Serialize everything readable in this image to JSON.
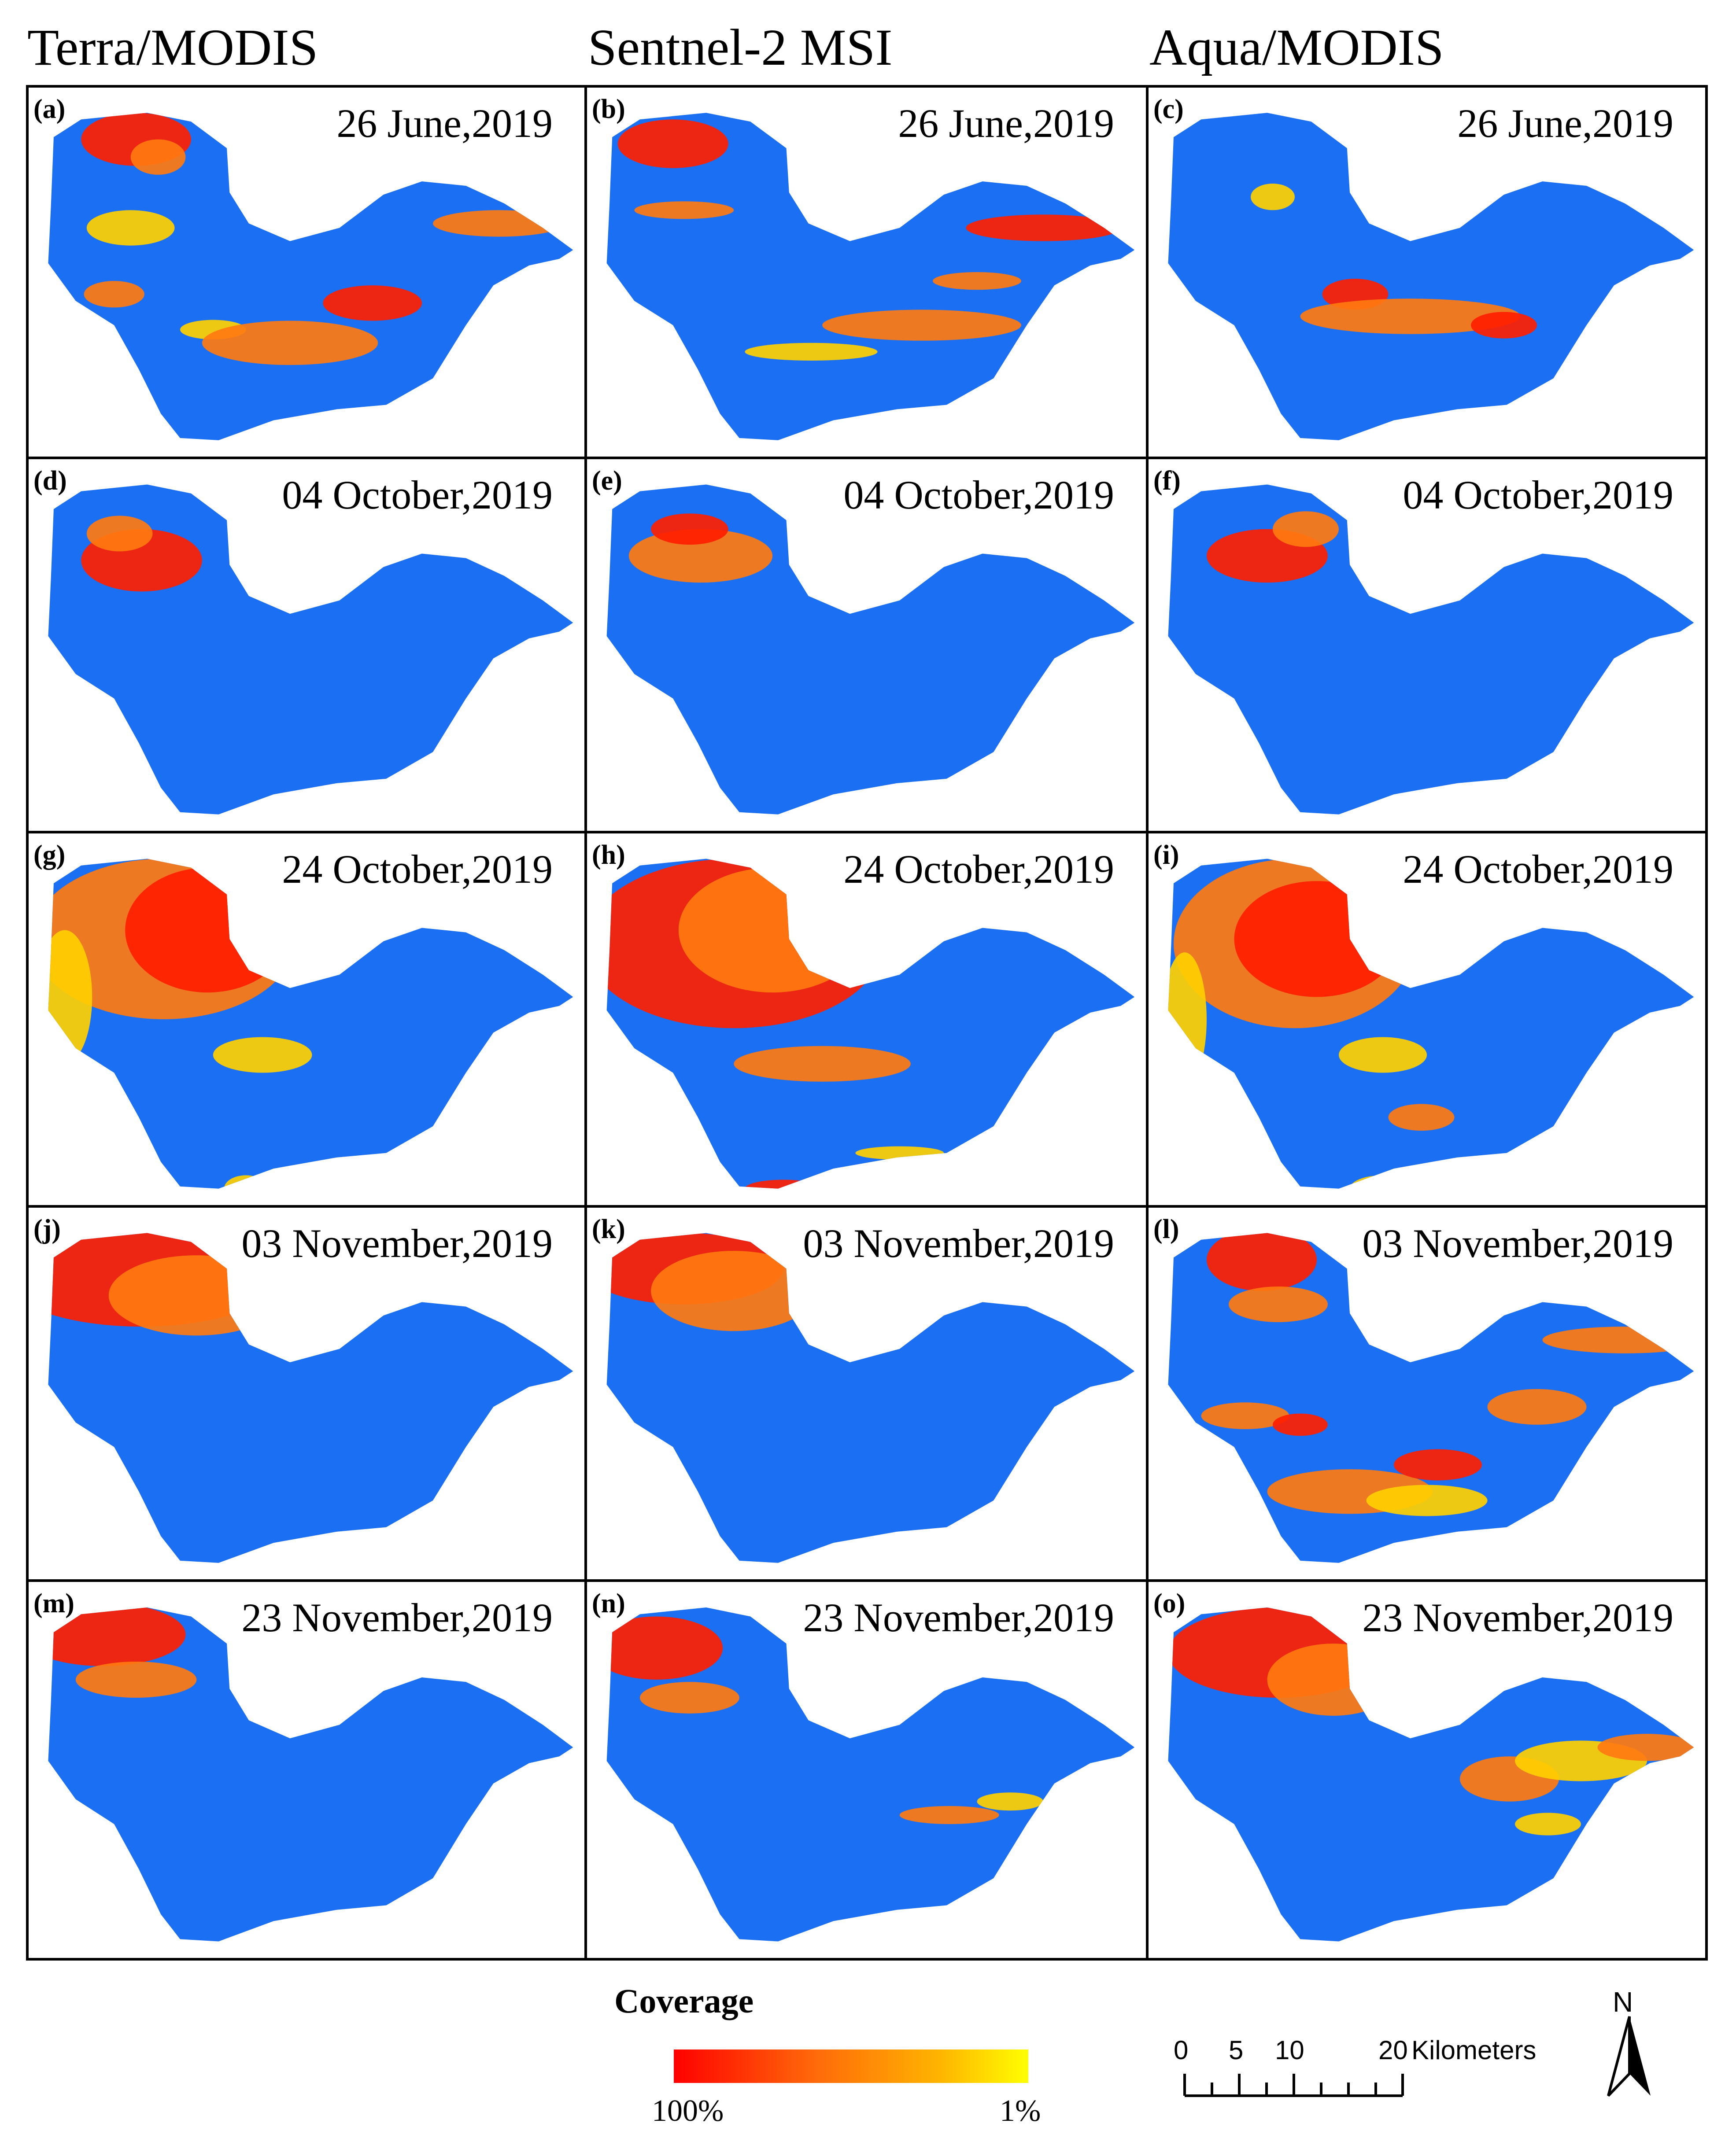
{
  "columns": [
    "Terra/MODIS",
    "Sentnel-2 MSI",
    "Aqua/MODIS"
  ],
  "panels": [
    {
      "label": "(a)",
      "date": "26 June,2019"
    },
    {
      "label": "(b)",
      "date": "26 June,2019"
    },
    {
      "label": "(c)",
      "date": "26 June,2019"
    },
    {
      "label": "(d)",
      "date": "04 October,2019"
    },
    {
      "label": "(e)",
      "date": "04 October,2019"
    },
    {
      "label": "(f)",
      "date": "04 October,2019"
    },
    {
      "label": "(g)",
      "date": "24 October,2019"
    },
    {
      "label": "(h)",
      "date": "24 October,2019"
    },
    {
      "label": "(i)",
      "date": "24 October,2019"
    },
    {
      "label": "(j)",
      "date": "03 November,2019"
    },
    {
      "label": "(k)",
      "date": "03 November,2019"
    },
    {
      "label": "(l)",
      "date": "03 November,2019"
    },
    {
      "label": "(m)",
      "date": "23 November,2019"
    },
    {
      "label": "(n)",
      "date": "23 November,2019"
    },
    {
      "label": "(o)",
      "date": "23 November,2019"
    }
  ],
  "legend": {
    "title": "Coverage",
    "max_label": "100%",
    "min_label": "1%",
    "colors": [
      "#ff0000",
      "#ffff00"
    ]
  },
  "scale": {
    "ticks": [
      "0",
      "5",
      "10",
      "20"
    ],
    "unit": "Kilometers"
  },
  "north": "N",
  "colors": {
    "lake": "#1a6ff2",
    "border": "#000000"
  }
}
